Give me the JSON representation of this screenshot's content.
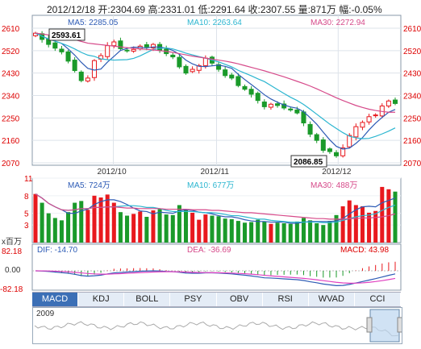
{
  "header": {
    "text": "2012/12/18 开:2304.69 高:2331.01 低:2291.64 收:2307.55 量:871万 幅:-0.05%"
  },
  "ma_labels": {
    "ma5": "MA5: 2285.05",
    "ma10": "MA10: 2263.64",
    "ma30": "MA30: 2272.94"
  },
  "vol_labels": {
    "ma5": "MA5: 724万",
    "ma10": "MA10: 677万",
    "ma30": "MA30: 488万"
  },
  "macd_labels": {
    "dif": "DIF: -14.70",
    "dea": "DEA: -36.69",
    "macd": "MACD: 43.98"
  },
  "annotations": {
    "high": "2593.61",
    "low": "2086.85"
  },
  "vol_unit": "x百万",
  "macd_ticks": [
    "82.18",
    "0.00",
    "-82.18"
  ],
  "tabs": [
    "MACD",
    "KDJ",
    "BOLL",
    "PSY",
    "OBV",
    "RSI",
    "WVAD",
    "CCI"
  ],
  "navigator": {
    "year": "2009"
  },
  "colors": {
    "up": "#e8191e",
    "down": "#1a9a2a",
    "ma5": "#2d5bb5",
    "ma10": "#2cb6d0",
    "ma30": "#d64a8a"
  },
  "chart_data": [
    {
      "type": "candlestick",
      "title": "",
      "ylim": [
        2070,
        2610
      ],
      "y_ticks": [
        2610,
        2520,
        2430,
        2340,
        2250,
        2160,
        2070
      ],
      "x_ticks": [
        "2012/10",
        "2012/11",
        "2012/12"
      ],
      "close": [
        2590,
        2565,
        2545,
        2530,
        2515,
        2478,
        2440,
        2400,
        2410,
        2480,
        2500,
        2540,
        2555,
        2528,
        2520,
        2525,
        2538,
        2535,
        2545,
        2522,
        2508,
        2495,
        2455,
        2430,
        2445,
        2460,
        2490,
        2470,
        2445,
        2420,
        2410,
        2380,
        2365,
        2345,
        2320,
        2295,
        2305,
        2300,
        2290,
        2282,
        2270,
        2230,
        2185,
        2160,
        2120,
        2115,
        2098,
        2130,
        2180,
        2215,
        2232,
        2255,
        2262,
        2298,
        2318,
        2308
      ],
      "series": [
        {
          "name": "MA5",
          "values": [
            2590,
            2578,
            2567,
            2558,
            2549,
            2527,
            2502,
            2473,
            2449,
            2442,
            2446,
            2474,
            2497,
            2521,
            2529,
            2534,
            2533,
            2531,
            2535,
            2534,
            2530,
            2521,
            2505,
            2482,
            2467,
            2457,
            2456,
            2459,
            2462,
            2457,
            2449,
            2425,
            2404,
            2384,
            2364,
            2343,
            2326,
            2313,
            2302,
            2294,
            2289,
            2275,
            2251,
            2225,
            2193,
            2162,
            2136,
            2125,
            2129,
            2148,
            2171,
            2202,
            2229,
            2252,
            2273,
            2284
          ]
        },
        {
          "name": "MA10",
          "values": [
            2590,
            2578,
            2567,
            2558,
            2549,
            2539,
            2527,
            2513,
            2502,
            2497,
            2487,
            2484,
            2482,
            2483,
            2484,
            2489,
            2499,
            2512,
            2525,
            2529,
            2531,
            2527,
            2519,
            2510,
            2503,
            2496,
            2490,
            2482,
            2475,
            2465,
            2455,
            2441,
            2430,
            2419,
            2407,
            2396,
            2380,
            2364,
            2348,
            2333,
            2320,
            2304,
            2285,
            2265,
            2245,
            2225,
            2208,
            2191,
            2177,
            2170,
            2167,
            2168,
            2176,
            2186,
            2197,
            2210
          ]
        },
        {
          "name": "MA30",
          "values": [
            2590,
            2587,
            2583,
            2579,
            2575,
            2570,
            2564,
            2557,
            2550,
            2547,
            2544,
            2541,
            2538,
            2535,
            2532,
            2529,
            2527,
            2525,
            2523,
            2520,
            2517,
            2513,
            2508,
            2503,
            2498,
            2494,
            2490,
            2486,
            2482,
            2478,
            2473,
            2467,
            2460,
            2453,
            2446,
            2439,
            2431,
            2423,
            2415,
            2406,
            2397,
            2388,
            2378,
            2367,
            2355,
            2343,
            2331,
            2320,
            2310,
            2300,
            2292,
            2285,
            2280,
            2276,
            2273,
            2273
          ]
        }
      ]
    },
    {
      "type": "bar",
      "title": "",
      "ylabel": "x百万",
      "ylim": [
        0,
        11
      ],
      "y_ticks": [
        11,
        8,
        5,
        3
      ],
      "values": [
        8.3,
        6.8,
        5.0,
        4.2,
        3.8,
        5.2,
        6.8,
        7.1,
        5.6,
        8.0,
        7.7,
        8.2,
        6.8,
        5.2,
        4.6,
        4.9,
        5.3,
        4.4,
        5.5,
        5.7,
        4.8,
        4.7,
        6.4,
        5.6,
        5.1,
        3.9,
        4.8,
        4.6,
        4.5,
        4.1,
        4.0,
        3.7,
        3.4,
        3.5,
        3.9,
        3.6,
        3.2,
        3.4,
        3.3,
        3.2,
        3.6,
        4.2,
        3.8,
        3.3,
        3.0,
        3.7,
        4.7,
        6.2,
        7.2,
        6.4,
        6.2,
        5.1,
        5.4,
        9.5,
        9.1,
        8.7
      ],
      "series": [
        {
          "name": "MA5",
          "values": [
            8.3,
            7.6,
            6.7,
            6.1,
            5.6,
            5.0,
            5.0,
            5.4,
            5.7,
            6.5,
            7.0,
            7.3,
            7.3,
            7.0,
            6.5,
            5.9,
            5.4,
            5.3,
            4.9,
            5.2,
            5.1,
            5.0,
            5.4,
            5.6,
            5.5,
            5.2,
            5.1,
            4.9,
            4.6,
            4.4,
            4.4,
            4.2,
            3.9,
            3.7,
            3.6,
            3.6,
            3.5,
            3.5,
            3.5,
            3.3,
            3.3,
            3.5,
            3.6,
            3.6,
            3.6,
            3.6,
            3.7,
            4.1,
            4.9,
            5.6,
            6.1,
            6.2,
            6.1,
            6.8,
            7.2,
            7.6
          ]
        },
        {
          "name": "MA10",
          "values": [
            8.3,
            7.6,
            6.7,
            6.1,
            5.6,
            5.5,
            5.6,
            5.8,
            5.8,
            6.0,
            6.0,
            6.1,
            6.1,
            6.2,
            6.3,
            6.3,
            6.2,
            6.0,
            6.0,
            5.8,
            5.5,
            5.3,
            5.3,
            5.3,
            5.3,
            5.2,
            5.1,
            5.1,
            5.0,
            4.8,
            4.6,
            4.6,
            4.4,
            4.2,
            4.0,
            4.0,
            3.8,
            3.7,
            3.6,
            3.5,
            3.5,
            3.5,
            3.5,
            3.5,
            3.4,
            3.4,
            3.5,
            3.8,
            4.1,
            4.4,
            4.6,
            4.7,
            4.9,
            5.5,
            6.0,
            6.4
          ]
        },
        {
          "name": "MA30",
          "values": [
            8.3,
            7.6,
            6.7,
            6.1,
            5.6,
            5.5,
            5.6,
            5.8,
            5.8,
            6.0,
            6.0,
            6.1,
            6.1,
            6.0,
            5.9,
            5.9,
            5.8,
            5.8,
            5.8,
            5.8,
            5.7,
            5.7,
            5.7,
            5.7,
            5.6,
            5.6,
            5.6,
            5.5,
            5.5,
            5.4,
            5.3,
            5.2,
            5.1,
            5.1,
            5.0,
            4.9,
            4.8,
            4.7,
            4.6,
            4.5,
            4.4,
            4.3,
            4.2,
            4.1,
            4.1,
            4.0,
            4.0,
            4.0,
            4.1,
            4.1,
            4.2,
            4.2,
            4.3,
            4.4,
            4.6,
            4.9
          ]
        }
      ]
    },
    {
      "type": "line",
      "title": "",
      "ylim": [
        -82.18,
        82.18
      ],
      "series": [
        {
          "name": "DIF",
          "values": [
            0,
            -1,
            -3,
            -6,
            -9,
            -12,
            -17,
            -23,
            -26,
            -24,
            -21,
            -15,
            -10,
            -8,
            -6,
            -4,
            -2,
            -1,
            0,
            -1,
            -3,
            -4,
            -7,
            -11,
            -12,
            -12,
            -10,
            -10,
            -11,
            -13,
            -15,
            -18,
            -21,
            -25,
            -29,
            -34,
            -35,
            -37,
            -39,
            -41,
            -43,
            -47,
            -53,
            -58,
            -64,
            -68,
            -72,
            -71,
            -66,
            -59,
            -52,
            -45,
            -38,
            -30,
            -22,
            -15
          ]
        },
        {
          "name": "DEA",
          "values": [
            0,
            -0.2,
            -0.8,
            -1.8,
            -3.2,
            -5,
            -7.4,
            -10,
            -13,
            -15,
            -16,
            -16,
            -15,
            -13.6,
            -12,
            -10.4,
            -8.7,
            -7.2,
            -5.8,
            -4.8,
            -4.4,
            -4.3,
            -4.8,
            -6,
            -7.2,
            -8.2,
            -8.6,
            -8.9,
            -9.3,
            -10,
            -11,
            -12.4,
            -14,
            -16.2,
            -18.8,
            -21.8,
            -24.4,
            -27,
            -29.4,
            -31.7,
            -34,
            -36.6,
            -39.9,
            -43.5,
            -47.6,
            -51.7,
            -55.8,
            -58.8,
            -60.2,
            -60,
            -58.4,
            -55.7,
            -52.1,
            -47.7,
            -42.6,
            -37
          ]
        },
        {
          "name": "MACD",
          "values": [
            0,
            -1.6,
            -4.4,
            -8.4,
            -11.6,
            -14,
            -19.2,
            -26,
            -26,
            -18,
            -10,
            2,
            10,
            11.2,
            12,
            12.8,
            13.4,
            12.4,
            11.6,
            7.6,
            2.8,
            0.6,
            -4.4,
            -10,
            -9.6,
            -7.6,
            -2.8,
            -2.2,
            -3.4,
            -6,
            -8,
            -11.2,
            -14,
            -17.6,
            -20.4,
            -24.4,
            -21.2,
            -20,
            -19.2,
            -18.6,
            -18,
            -20.8,
            -26.2,
            -29,
            -32.8,
            -32.6,
            -32.4,
            -24.4,
            -11.6,
            2,
            12.8,
            21.4,
            28.2,
            35.4,
            41.2,
            44
          ]
        }
      ]
    }
  ]
}
